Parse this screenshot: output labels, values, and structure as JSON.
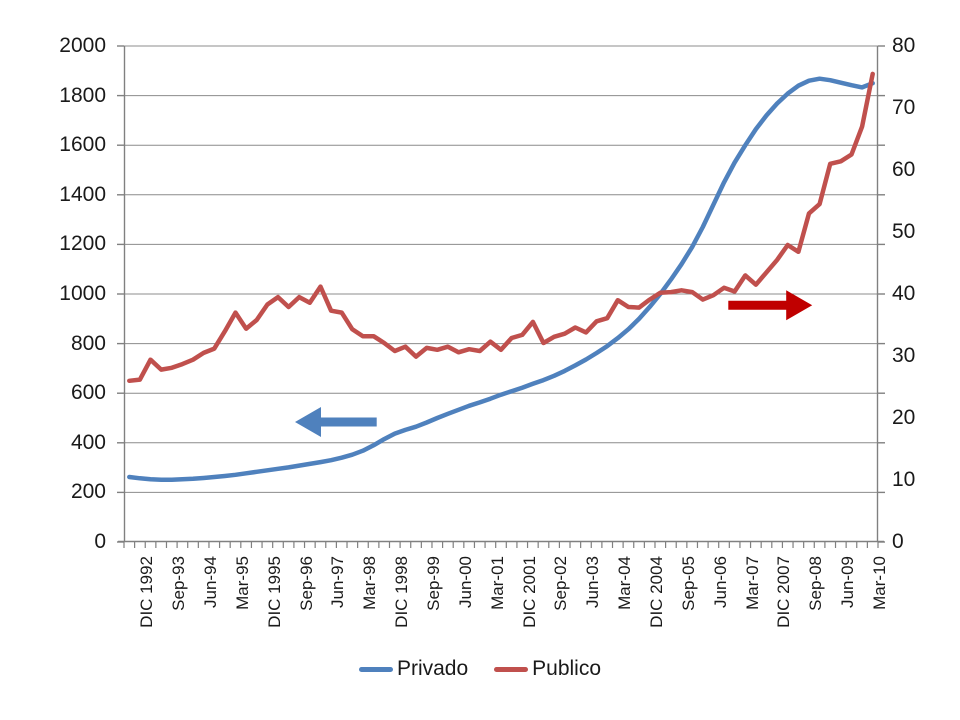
{
  "chart_data": {
    "type": "line",
    "n_points": 71,
    "x_start": "DIC 1992",
    "x_frequency": "quarterly",
    "x_tick_labels": [
      "DIC 1992",
      "Sep-93",
      "Jun-94",
      "Mar-95",
      "DIC 1995",
      "Sep-96",
      "Jun-97",
      "Mar-98",
      "DIC 1998",
      "Sep-99",
      "Jun-00",
      "Mar-01",
      "DIC 2001",
      "Sep-02",
      "Jun-03",
      "Mar-04",
      "DIC 2004",
      "Sep-05",
      "Jun-06",
      "Mar-07",
      "DIC 2007",
      "Sep-08",
      "Jun-09",
      "Mar-10"
    ],
    "x_label_every_n_points": 3,
    "left_axis": {
      "min": 0,
      "max": 2000,
      "step": 200,
      "tick_labels": [
        "0",
        "200",
        "400",
        "600",
        "800",
        "1000",
        "1200",
        "1400",
        "1600",
        "1800",
        "2000"
      ]
    },
    "right_axis": {
      "min": 0,
      "max": 80,
      "step": 10,
      "tick_labels": [
        "0",
        "10",
        "20",
        "30",
        "40",
        "50",
        "60",
        "70",
        "80"
      ]
    },
    "grid": true,
    "legend_position": "bottom",
    "series": [
      {
        "name": "Privado",
        "axis": "left",
        "color": "#4F81BD",
        "values": [
          262,
          257,
          253,
          251,
          251,
          253,
          255,
          258,
          262,
          266,
          271,
          277,
          283,
          289,
          295,
          301,
          308,
          315,
          322,
          330,
          340,
          352,
          368,
          390,
          415,
          437,
          452,
          465,
          482,
          500,
          517,
          533,
          549,
          563,
          578,
          594,
          608,
          622,
          638,
          653,
          670,
          690,
          712,
          736,
          762,
          790,
          822,
          858,
          900,
          948,
          1000,
          1058,
          1120,
          1190,
          1270,
          1360,
          1450,
          1530,
          1600,
          1665,
          1720,
          1768,
          1808,
          1840,
          1860,
          1868,
          1862,
          1852,
          1842,
          1833,
          1850
        ]
      },
      {
        "name": "Publico",
        "axis": "right",
        "color": "#C0504D",
        "values": [
          26.0,
          26.2,
          29.4,
          27.8,
          28.1,
          28.7,
          29.4,
          30.5,
          31.2,
          34.0,
          37.0,
          34.4,
          35.8,
          38.3,
          39.5,
          37.9,
          39.5,
          38.6,
          41.2,
          37.3,
          37.0,
          34.3,
          33.2,
          33.2,
          32.1,
          30.8,
          31.5,
          29.9,
          31.3,
          31.0,
          31.5,
          30.6,
          31.1,
          30.8,
          32.3,
          31.0,
          32.9,
          33.4,
          35.5,
          32.1,
          33.1,
          33.6,
          34.6,
          33.8,
          35.6,
          36.1,
          39.0,
          37.9,
          37.8,
          39.1,
          40.2,
          40.3,
          40.6,
          40.3,
          39.1,
          39.8,
          41.0,
          40.4,
          43.0,
          41.5,
          43.5,
          45.5,
          47.9,
          46.8,
          53.0,
          54.5,
          61.0,
          61.4,
          62.5,
          67.0,
          75.5
        ]
      }
    ],
    "annotations": [
      {
        "shape": "arrow",
        "direction": "left",
        "color": "#4F81BD",
        "axis": "left",
        "y_value": 484,
        "q_from": 23.3,
        "q_to": 15.6,
        "meaning": "Privado series read on left axis"
      },
      {
        "shape": "arrow",
        "direction": "right",
        "color": "#C00000",
        "axis": "right",
        "y_value": 38.2,
        "q_from": 56.4,
        "q_to": 64.3,
        "meaning": "Publico series read on right axis"
      }
    ],
    "legend": {
      "privado_label": "Privado",
      "publico_label": "Publico"
    }
  },
  "style": {
    "gridline_color": "#8c8c8c",
    "axis_color": "#808080",
    "background": "#ffffff",
    "text_color": "#1a1a1a"
  }
}
